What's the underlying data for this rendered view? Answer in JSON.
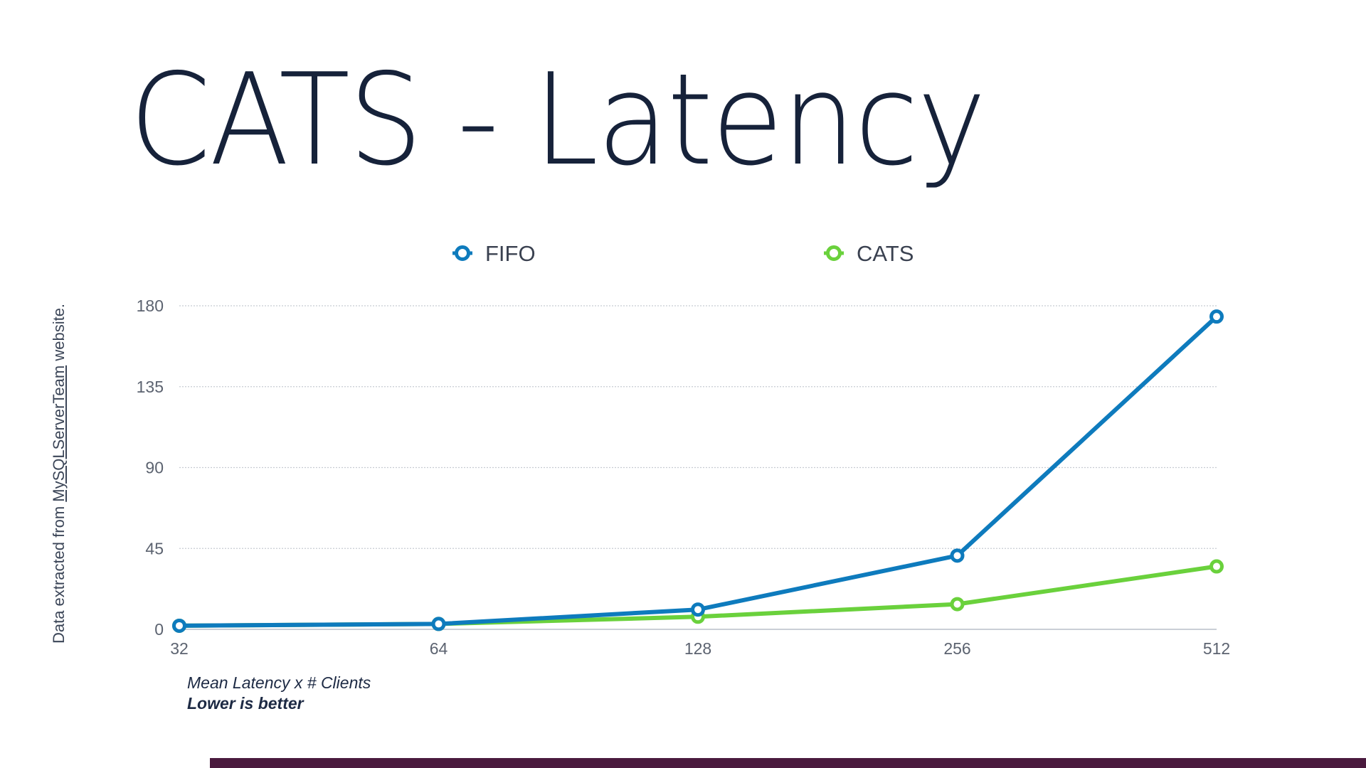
{
  "slide": {
    "title": "CATS - Latency",
    "source_note_prefix": "Data extracted from ",
    "source_note_link": "MySQLServerTeam",
    "source_note_suffix": " website.",
    "caption_line1": "Mean Latency x # Clients",
    "caption_line2": "Lower is better",
    "footer_bar_color": "#4a1a3e"
  },
  "chart_data": {
    "type": "line",
    "title": "",
    "xlabel": "",
    "ylabel": "",
    "categories": [
      "32",
      "64",
      "128",
      "256",
      "512"
    ],
    "series": [
      {
        "name": "FIFO",
        "color": "#0e7bbd",
        "values": [
          2,
          3,
          11,
          41,
          174
        ]
      },
      {
        "name": "CATS",
        "color": "#6ad13c",
        "values": [
          2,
          3,
          7,
          14,
          35
        ]
      }
    ],
    "ylim": [
      0,
      180
    ],
    "yticks": [
      0,
      45,
      90,
      135,
      180
    ],
    "grid": true,
    "legend": "top-center"
  }
}
